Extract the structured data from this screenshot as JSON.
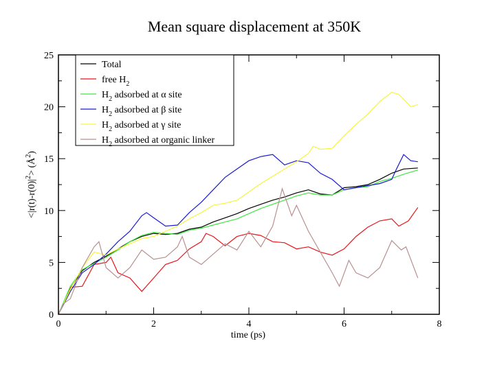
{
  "chart_data": {
    "type": "line",
    "title": "Mean square displacement at 350K",
    "xlabel": "time (ps)",
    "ylabel": "<|r(t)-r(0)|2> (Å2)",
    "ylabel_parts": {
      "main": "<|r(t)-r(0)|",
      "sup1": "2",
      "mid": "> (Å",
      "sup2": "2",
      "end": ")"
    },
    "xlim": [
      0,
      8
    ],
    "ylim": [
      0,
      25
    ],
    "xticks": [
      0,
      2,
      4,
      6,
      8
    ],
    "yticks": [
      0,
      5,
      10,
      15,
      20,
      25
    ],
    "legend_placement": "top-left",
    "grid": false,
    "series": [
      {
        "name": "Total",
        "legend": {
          "pre": "Total",
          "sub": "",
          "post": ""
        },
        "color": "#000000",
        "x": [
          0,
          0.25,
          0.5,
          0.75,
          1,
          1.25,
          1.5,
          1.75,
          2,
          2.25,
          2.5,
          2.75,
          3,
          3.25,
          3.5,
          3.75,
          4,
          4.25,
          4.5,
          4.75,
          5,
          5.25,
          5.5,
          5.75,
          6,
          6.25,
          6.5,
          6.75,
          7,
          7.25,
          7.55
        ],
        "y": [
          0,
          2.5,
          4.2,
          5.0,
          5.6,
          6.3,
          7.0,
          7.5,
          7.8,
          7.7,
          7.8,
          8.2,
          8.4,
          8.9,
          9.3,
          9.7,
          10.2,
          10.6,
          11.0,
          11.3,
          11.7,
          12.0,
          11.6,
          11.5,
          12.2,
          12.3,
          12.5,
          13.0,
          13.6,
          14.0,
          14.1
        ]
      },
      {
        "name": "free H2",
        "legend": {
          "pre": "free H",
          "sub": "2",
          "post": ""
        },
        "color": "#e8141b",
        "x": [
          0,
          0.25,
          0.5,
          0.75,
          1,
          1.1,
          1.25,
          1.5,
          1.75,
          2,
          2.25,
          2.5,
          2.75,
          3,
          3.1,
          3.25,
          3.5,
          3.75,
          4,
          4.25,
          4.5,
          4.75,
          5,
          5.25,
          5.5,
          5.75,
          6,
          6.25,
          6.5,
          6.75,
          7,
          7.15,
          7.35,
          7.55
        ],
        "y": [
          0,
          2.6,
          2.7,
          4.8,
          5.0,
          5.5,
          4.0,
          3.5,
          2.2,
          3.5,
          4.8,
          5.2,
          6.3,
          7.0,
          7.8,
          7.5,
          6.6,
          7.5,
          7.8,
          7.6,
          7.0,
          6.9,
          6.3,
          6.5,
          6.0,
          5.7,
          6.3,
          7.5,
          8.4,
          9.0,
          9.2,
          8.5,
          9.0,
          10.3
        ]
      },
      {
        "name": "H2 adsorbed at α site",
        "legend": {
          "pre": "H",
          "sub": "2",
          "post": " adsorbed at α site"
        },
        "color": "#3ee83e",
        "x": [
          0,
          0.25,
          0.5,
          0.75,
          1,
          1.25,
          1.5,
          1.75,
          2,
          2.25,
          2.5,
          2.75,
          3,
          3.25,
          3.5,
          3.75,
          4,
          4.25,
          4.5,
          4.75,
          5,
          5.25,
          5.5,
          5.75,
          6,
          6.25,
          6.5,
          6.75,
          7,
          7.25,
          7.55
        ],
        "y": [
          0,
          2.7,
          4.3,
          4.9,
          5.5,
          6.2,
          7.0,
          7.6,
          7.9,
          7.8,
          7.7,
          8.1,
          8.3,
          8.6,
          8.9,
          9.2,
          9.7,
          10.2,
          10.6,
          11.0,
          11.4,
          11.7,
          11.5,
          11.5,
          12.0,
          12.2,
          12.3,
          12.8,
          13.1,
          13.5,
          13.9
        ]
      },
      {
        "name": "H2 adsorbed at β site",
        "legend": {
          "pre": "H",
          "sub": "2",
          "post": " adsorbed at β site"
        },
        "color": "#1a1ad4",
        "x": [
          0,
          0.25,
          0.5,
          0.75,
          1,
          1.25,
          1.5,
          1.75,
          1.85,
          2,
          2.25,
          2.5,
          2.75,
          3,
          3.25,
          3.5,
          3.75,
          4,
          4.25,
          4.5,
          4.75,
          5,
          5.25,
          5.5,
          5.75,
          6,
          6.25,
          6.5,
          6.75,
          7,
          7.1,
          7.25,
          7.4,
          7.55
        ],
        "y": [
          0,
          2.2,
          4.0,
          4.8,
          5.8,
          7.0,
          8.0,
          9.5,
          9.8,
          9.3,
          8.5,
          8.6,
          9.8,
          10.8,
          12.0,
          13.2,
          14.0,
          14.8,
          15.2,
          15.4,
          14.4,
          14.8,
          14.6,
          13.6,
          13.0,
          12.0,
          12.2,
          12.4,
          12.6,
          13.0,
          14.0,
          15.4,
          14.8,
          14.7
        ]
      },
      {
        "name": "H2 adsorbed at γ site",
        "legend": {
          "pre": "H",
          "sub": "2",
          "post": " adsorbed at γ site"
        },
        "color": "#f5f53a",
        "x": [
          0,
          0.25,
          0.5,
          0.75,
          1,
          1.25,
          1.5,
          1.75,
          2,
          2.25,
          2.5,
          2.75,
          3,
          3.25,
          3.5,
          3.75,
          4,
          4.25,
          4.5,
          4.75,
          5,
          5.25,
          5.35,
          5.5,
          5.75,
          6,
          6.25,
          6.5,
          6.75,
          7,
          7.15,
          7.3,
          7.4,
          7.55
        ],
        "y": [
          0,
          2.4,
          4.5,
          6.0,
          5.7,
          6.3,
          6.8,
          7.3,
          7.5,
          8.0,
          8.5,
          9.2,
          9.8,
          10.5,
          10.7,
          11.0,
          11.8,
          12.6,
          13.3,
          14.0,
          14.7,
          15.5,
          16.2,
          15.9,
          16.0,
          17.2,
          18.3,
          19.3,
          20.5,
          21.4,
          21.2,
          20.5,
          20.0,
          20.2
        ]
      },
      {
        "name": "H2 adsorbed at organic linker",
        "legend": {
          "pre": "H",
          "sub": "2",
          "post": " adsorbed at organic linker"
        },
        "color": "#b89090",
        "x": [
          0,
          0.1,
          0.25,
          0.5,
          0.75,
          0.85,
          1,
          1.25,
          1.5,
          1.75,
          2,
          2.25,
          2.5,
          2.6,
          2.75,
          3,
          3.25,
          3.5,
          3.75,
          4,
          4.25,
          4.5,
          4.7,
          4.9,
          5,
          5.25,
          5.5,
          5.75,
          5.9,
          6.1,
          6.25,
          6.5,
          6.75,
          7,
          7.2,
          7.3,
          7.55
        ],
        "y": [
          0,
          1.0,
          1.5,
          4.5,
          6.5,
          7.0,
          4.5,
          3.5,
          4.5,
          6.2,
          5.3,
          5.5,
          6.5,
          7.5,
          5.5,
          4.8,
          5.8,
          6.8,
          6.2,
          8.0,
          6.5,
          8.5,
          12.1,
          9.5,
          10.5,
          8.0,
          6.0,
          4.0,
          2.7,
          5.2,
          4.0,
          3.5,
          4.5,
          7.1,
          6.2,
          6.5,
          3.5
        ]
      }
    ]
  }
}
